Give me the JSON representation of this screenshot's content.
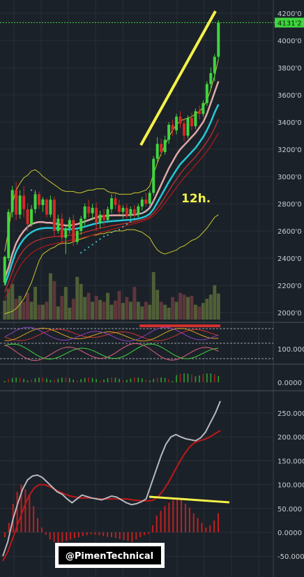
{
  "chart_data": [
    {
      "type": "candlestick",
      "panel": "price",
      "y_ticks": [
        "4200'0",
        "4000'0",
        "3800'0",
        "3600'0",
        "3400'0",
        "3200'0",
        "3000'0",
        "2800'0",
        "2600'0",
        "2400'0",
        "2200'0",
        "2000'0"
      ],
      "y_tick_values": [
        4200,
        4000,
        3800,
        3600,
        3400,
        3200,
        3000,
        2800,
        2600,
        2400,
        2200,
        2000
      ],
      "ylim": [
        1950,
        4230
      ],
      "last_price_label": "4131'2",
      "last_price": 4131.2,
      "annotation": "12h.",
      "colors": {
        "up": "#3fd63f",
        "down": "#d62828",
        "last_price_line": "#3fd63f",
        "trendline": "#f2f24a"
      },
      "candles_ohlc": [
        [
          2220,
          2420,
          2200,
          2410
        ],
        [
          2400,
          2760,
          2380,
          2740
        ],
        [
          2740,
          2930,
          2700,
          2900
        ],
        [
          2900,
          2960,
          2680,
          2720
        ],
        [
          2720,
          2900,
          2690,
          2860
        ],
        [
          2860,
          2930,
          2700,
          2760
        ],
        [
          2760,
          2800,
          2600,
          2650
        ],
        [
          2650,
          2790,
          2630,
          2760
        ],
        [
          2760,
          2900,
          2730,
          2870
        ],
        [
          2870,
          2890,
          2760,
          2790
        ],
        [
          2790,
          2850,
          2740,
          2830
        ],
        [
          2830,
          2840,
          2700,
          2720
        ],
        [
          2720,
          2860,
          2700,
          2830
        ],
        [
          2830,
          2850,
          2560,
          2600
        ],
        [
          2600,
          2720,
          2580,
          2690
        ],
        [
          2690,
          2730,
          2500,
          2550
        ],
        [
          2550,
          2650,
          2430,
          2620
        ],
        [
          2620,
          2700,
          2580,
          2680
        ],
        [
          2680,
          2720,
          2490,
          2520
        ],
        [
          2520,
          2620,
          2500,
          2600
        ],
        [
          2600,
          2710,
          2570,
          2690
        ],
        [
          2690,
          2800,
          2640,
          2780
        ],
        [
          2780,
          2830,
          2700,
          2730
        ],
        [
          2730,
          2800,
          2680,
          2770
        ],
        [
          2770,
          2810,
          2600,
          2660
        ],
        [
          2660,
          2750,
          2620,
          2720
        ],
        [
          2720,
          2760,
          2640,
          2680
        ],
        [
          2680,
          2780,
          2660,
          2760
        ],
        [
          2760,
          2870,
          2730,
          2840
        ],
        [
          2840,
          2880,
          2760,
          2790
        ],
        [
          2790,
          2830,
          2720,
          2740
        ],
        [
          2740,
          2790,
          2690,
          2770
        ],
        [
          2770,
          2800,
          2690,
          2710
        ],
        [
          2710,
          2780,
          2690,
          2760
        ],
        [
          2760,
          2790,
          2700,
          2720
        ],
        [
          2720,
          2800,
          2700,
          2780
        ],
        [
          2780,
          2850,
          2750,
          2830
        ],
        [
          2830,
          2880,
          2780,
          2800
        ],
        [
          2800,
          2900,
          2790,
          2880
        ],
        [
          2880,
          3150,
          2860,
          3130
        ],
        [
          3130,
          3290,
          3100,
          3240
        ],
        [
          3240,
          3280,
          3150,
          3180
        ],
        [
          3180,
          3300,
          3160,
          3270
        ],
        [
          3270,
          3400,
          3240,
          3380
        ],
        [
          3380,
          3420,
          3300,
          3340
        ],
        [
          3340,
          3460,
          3310,
          3440
        ],
        [
          3440,
          3480,
          3360,
          3390
        ],
        [
          3390,
          3420,
          3260,
          3300
        ],
        [
          3300,
          3450,
          3280,
          3430
        ],
        [
          3430,
          3470,
          3340,
          3370
        ],
        [
          3370,
          3500,
          3350,
          3480
        ],
        [
          3480,
          3520,
          3420,
          3460
        ],
        [
          3460,
          3560,
          3440,
          3540
        ],
        [
          3540,
          3700,
          3520,
          3680
        ],
        [
          3680,
          3800,
          3640,
          3760
        ],
        [
          3760,
          3900,
          3700,
          3880
        ],
        [
          3880,
          4150,
          3860,
          4131.2
        ]
      ],
      "bands": {
        "upper": [
          2450,
          2600,
          2800,
          2900,
          2950,
          2990,
          3010,
          3040,
          3050,
          3030,
          3000,
          2980,
          2960,
          2940,
          2920,
          2900,
          2890,
          2890,
          2890,
          2880,
          2880,
          2890,
          2900,
          2900,
          2910,
          2910,
          2910,
          2890,
          2880,
          2880,
          2870,
          2870,
          2870,
          2870,
          2880,
          2880,
          2890,
          2900,
          2930,
          3020,
          3100,
          3170,
          3230,
          3290,
          3340,
          3380,
          3410,
          3420,
          3430,
          3440,
          3460,
          3480,
          3510,
          3560,
          3640,
          3740,
          3860
        ],
        "lower": [
          1990,
          2000,
          2010,
          2030,
          2060,
          2100,
          2160,
          2220,
          2300,
          2380,
          2430,
          2450,
          2470,
          2480,
          2500,
          2510,
          2510,
          2510,
          2520,
          2530,
          2540,
          2550,
          2560,
          2570,
          2570,
          2580,
          2580,
          2590,
          2590,
          2600,
          2600,
          2600,
          2610,
          2610,
          2610,
          2600,
          2590,
          2570,
          2550,
          2500,
          2460,
          2440,
          2430,
          2440,
          2450,
          2460,
          2480,
          2490,
          2510,
          2530,
          2540,
          2560,
          2590,
          2620,
          2660,
          2700,
          2720
        ],
        "mid_white": [
          2250,
          2330,
          2430,
          2510,
          2560,
          2600,
          2630,
          2650,
          2660,
          2665,
          2665,
          2660,
          2660,
          2655,
          2650,
          2645,
          2640,
          2640,
          2645,
          2650,
          2660,
          2670,
          2680,
          2690,
          2700,
          2705,
          2710,
          2712,
          2715,
          2715,
          2715,
          2715,
          2715,
          2718,
          2720,
          2725,
          2730,
          2745,
          2770,
          2820,
          2880,
          2940,
          3000,
          3060,
          3110,
          3160,
          3200,
          3230,
          3260,
          3290,
          3320,
          3360,
          3400,
          3460,
          3540,
          3620,
          3700
        ],
        "mid_cyan": [
          2200,
          2280,
          2370,
          2450,
          2500,
          2540,
          2570,
          2590,
          2605,
          2615,
          2620,
          2622,
          2622,
          2620,
          2618,
          2615,
          2612,
          2612,
          2614,
          2618,
          2624,
          2632,
          2640,
          2648,
          2655,
          2660,
          2665,
          2668,
          2672,
          2674,
          2676,
          2678,
          2680,
          2682,
          2685,
          2690,
          2698,
          2708,
          2725,
          2760,
          2810,
          2860,
          2910,
          2960,
          3005,
          3050,
          3090,
          3120,
          3150,
          3180,
          3210,
          3250,
          3290,
          3340,
          3400,
          3470,
          3530
        ],
        "red1": [
          2150,
          2220,
          2300,
          2370,
          2420,
          2460,
          2490,
          2510,
          2525,
          2535,
          2545,
          2550,
          2555,
          2558,
          2560,
          2562,
          2565,
          2568,
          2572,
          2576,
          2582,
          2590,
          2598,
          2606,
          2614,
          2620,
          2626,
          2632,
          2638,
          2643,
          2648,
          2652,
          2657,
          2662,
          2668,
          2675,
          2683,
          2692,
          2705,
          2730,
          2765,
          2805,
          2850,
          2895,
          2940,
          2980,
          3020,
          3055,
          3085,
          3115,
          3145,
          3180,
          3215,
          3255,
          3300,
          3355,
          3420
        ],
        "red2": [
          2100,
          2160,
          2230,
          2290,
          2340,
          2380,
          2410,
          2435,
          2455,
          2470,
          2482,
          2492,
          2500,
          2506,
          2512,
          2518,
          2524,
          2530,
          2536,
          2542,
          2548,
          2555,
          2562,
          2570,
          2578,
          2586,
          2594,
          2602,
          2610,
          2618,
          2626,
          2633,
          2640,
          2647,
          2654,
          2662,
          2670,
          2680,
          2692,
          2712,
          2738,
          2770,
          2806,
          2844,
          2882,
          2920,
          2956,
          2990,
          3022,
          3054,
          3086,
          3118,
          3150,
          3185,
          3225,
          3270,
          3320
        ]
      },
      "volume": [
        0.32,
        0.52,
        0.6,
        0.35,
        0.4,
        0.3,
        0.45,
        0.3,
        0.55,
        0.25,
        0.25,
        0.3,
        0.78,
        0.65,
        0.22,
        0.4,
        0.55,
        0.2,
        0.35,
        0.72,
        0.6,
        0.38,
        0.45,
        0.3,
        0.4,
        0.33,
        0.3,
        0.45,
        0.25,
        0.32,
        0.48,
        0.28,
        0.38,
        0.3,
        0.55,
        0.3,
        0.22,
        0.3,
        0.25,
        0.8,
        0.5,
        0.3,
        0.25,
        0.2,
        0.38,
        0.3,
        0.45,
        0.42,
        0.38,
        0.4,
        0.25,
        0.22,
        0.28,
        0.35,
        0.42,
        0.58,
        0.44
      ]
    },
    {
      "type": "line",
      "panel": "oscillator_1",
      "y_ticks": [
        "100.000"
      ],
      "y_tick_values": [
        100
      ]
    },
    {
      "type": "bar",
      "panel": "oscillator_2",
      "y_ticks": [
        "0.0000"
      ],
      "y_tick_values": [
        0
      ]
    },
    {
      "type": "bar",
      "panel": "macd",
      "y_ticks": [
        "250.000",
        "200.000",
        "150.000",
        "100.000",
        "50.000",
        "0.0000",
        "-50.000"
      ],
      "y_tick_values": [
        250,
        200,
        150,
        100,
        50,
        0,
        -50
      ],
      "ylim": [
        -85,
        290
      ],
      "histogram": [
        -10,
        20,
        60,
        85,
        100,
        90,
        80,
        55,
        30,
        10,
        -5,
        -15,
        -20,
        -22,
        -20,
        -18,
        -15,
        -12,
        -10,
        -8,
        -6,
        -4,
        -5,
        -6,
        -8,
        -10,
        -10,
        -12,
        -14,
        -16,
        -18,
        -20,
        -15,
        -10,
        -6,
        -3,
        15,
        35,
        45,
        55,
        62,
        68,
        70,
        68,
        60,
        52,
        40,
        30,
        20,
        10,
        15,
        25,
        40
      ],
      "macd_line": [
        -50,
        -20,
        25,
        60,
        90,
        110,
        118,
        120,
        115,
        105,
        95,
        85,
        80,
        70,
        62,
        70,
        78,
        75,
        72,
        70,
        68,
        72,
        76,
        74,
        68,
        62,
        58,
        60,
        64,
        70,
        100,
        130,
        160,
        185,
        200,
        205,
        200,
        196,
        194,
        192,
        198,
        210,
        230,
        250,
        275
      ],
      "signal_line": [
        -60,
        -40,
        -10,
        20,
        50,
        75,
        92,
        100,
        100,
        96,
        90,
        85,
        80,
        76,
        74,
        72,
        72,
        72,
        71,
        70,
        70,
        70,
        70,
        70,
        70,
        68,
        67,
        66,
        66,
        67,
        75,
        88,
        105,
        125,
        145,
        163,
        178,
        188,
        192,
        195,
        200,
        207,
        213
      ],
      "trendline_color": "#f2f24a"
    }
  ],
  "watermark": {
    "text": "@PimenTechnical"
  }
}
